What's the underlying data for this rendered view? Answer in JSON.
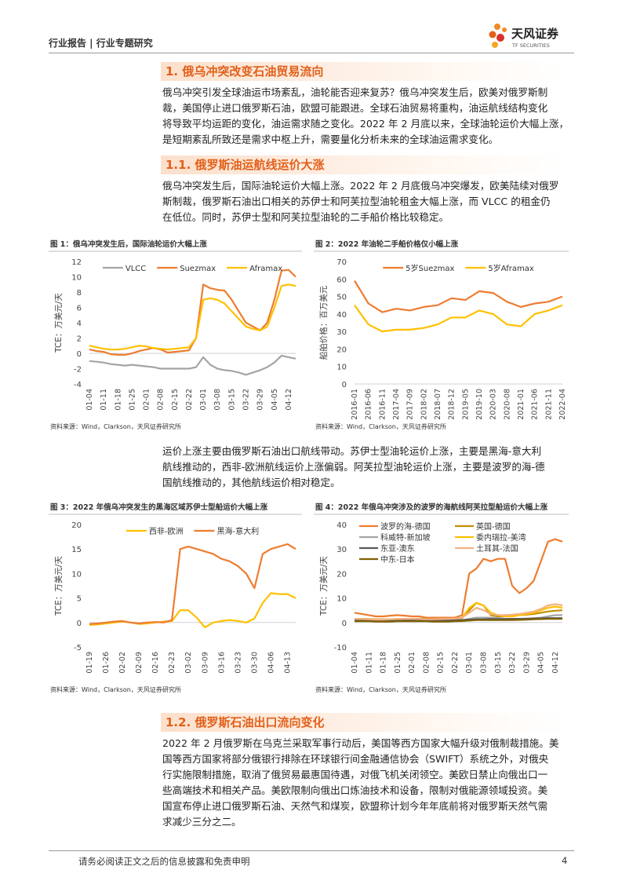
{
  "header": {
    "title": "行业报告 | 行业专题研究",
    "logo_cn": "天风证券",
    "logo_en": "TF SECURITIES"
  },
  "headings": [
    "1. 俄乌冲突改变石油贸易流向",
    "1.1. 俄罗斯油运航线运价大涨",
    "1.2. 俄罗斯石油出口流向变化"
  ],
  "paragraphs": [
    [
      "俄乌冲突引发全球油运市场紊乱，油轮能否迎来复苏？俄乌冲突发生后，欧美对俄罗斯制",
      "裁，美国停止进口俄罗斯石油，欧盟可能跟进。全球石油贸易将重构，油运航线结构变化",
      "将导致平均运距的变化，油运需求随之变化。2022 年 2 月底以来，全球油轮运价大幅上涨，",
      "是短期紊乱所致还是需求中枢上升，需要量化分析未来的全球油运需求变化。"
    ],
    [
      "俄乌冲突发生后，国际油轮运价大幅上涨。2022 年 2 月底俄乌冲突爆发，欧美陆续对俄罗",
      "斯制裁，俄罗斯石油出口相关的苏伊士和阿芙拉型油轮租金大幅上涨，而 VLCC 的租金仍",
      "在低位。同时，苏伊士型和阿芙拉型油轮的二手船价格比较稳定。"
    ],
    [
      "运价上涨主要由俄罗斯石油出口航线带动。苏伊士型油轮运价上涨，主要是黑海-意大利",
      "航线推动的，西非-欧洲航线运价上涨偏弱。阿芙拉型油轮运价上涨，主要是波罗的海-德",
      "国航线推动的，其他航线运价相对稳定。"
    ],
    [
      "2022 年 2 月俄罗斯在乌克兰采取军事行动后，美国等西方国家大幅升级对俄制裁措施。美",
      "国等西方国家将部分俄银行排除在环球银行间金融通信协会（SWIFT）系统之外，对俄央",
      "行实施限制措施，取消了俄贸易最惠国待遇，对俄飞机关闭领空。美欧日禁止向俄出口一",
      "些高端技术和相关产品。美欧限制向俄出口炼油技术和设备，限制对俄能源领域投资。美",
      "国宣布停止进口俄罗斯石油、天然气和煤炭，欧盟称计划今年年底前将对俄罗斯天然气需",
      "求减少三分之二。"
    ]
  ],
  "figures": [
    {
      "caption": "图 1：俄乌冲突发生后，国际油轮运价大幅上涨",
      "source": "资料来源：Wind，Clarkson，天风证券研究所",
      "chart": {
        "type": "line",
        "y_label": "TCE：万美元/天",
        "legend": "top",
        "categories": [
          "01-04",
          null,
          "01-11",
          null,
          "01-18",
          null,
          "01-25",
          null,
          "02-01",
          null,
          "02-08",
          null,
          "02-15",
          null,
          "02-22",
          null,
          "03-01",
          null,
          "03-08",
          null,
          "03-15",
          null,
          "03-22",
          null,
          "03-29",
          null,
          "04-05",
          null,
          "04-12",
          null
        ],
        "ylim": [
          -4,
          12
        ],
        "yticks": [
          -4,
          -2,
          0,
          2,
          4,
          6,
          8,
          10,
          12
        ],
        "series": [
          {
            "name": "VLCC",
            "color": "#a5a5a5",
            "values": [
              -1,
              -1.1,
              -1.2,
              -1.4,
              -1.5,
              -1.6,
              -1.5,
              -1.6,
              -1.7,
              -1.8,
              -2,
              -2,
              -2,
              -2,
              -2,
              -1.8,
              -0.5,
              -1.5,
              -2,
              -2.2,
              -2.3,
              -2.5,
              -2.8,
              -2.5,
              -2.2,
              -1.8,
              -1.2,
              -0.3,
              -0.5,
              -0.7
            ]
          },
          {
            "name": "Suezmax",
            "color": "#ed7d31",
            "values": [
              0.5,
              0.3,
              0.2,
              -0.1,
              -0.2,
              -0.2,
              0,
              0.3,
              0.5,
              0.7,
              0.5,
              0.1,
              0.2,
              0.3,
              0.4,
              2,
              9,
              8.5,
              8.3,
              8.2,
              7,
              5.5,
              4,
              3.5,
              3,
              4,
              7,
              10.8,
              10.9,
              10
            ]
          },
          {
            "name": "Aframax",
            "color": "#ffc000",
            "values": [
              1,
              0.8,
              0.6,
              0.5,
              0.5,
              0.6,
              0.8,
              1,
              0.9,
              0.7,
              0.6,
              0.5,
              0.6,
              0.7,
              0.8,
              2,
              7,
              7.2,
              7,
              6.5,
              5.5,
              4.5,
              3.5,
              3.2,
              3,
              3.5,
              6,
              8.8,
              9,
              8.8
            ]
          }
        ]
      }
    },
    {
      "caption": "图 2：2022 年油轮二手船价格仅小幅上涨",
      "source": "资料来源：Wind，Clarkson，天风证券研究所",
      "chart": {
        "type": "line",
        "y_label": "船舶价格：百万美元",
        "legend": "top",
        "categories": [
          "2016-01",
          "2016-06",
          "2016-11",
          "2017-04",
          "2017-09",
          "2018-02",
          "2018-07",
          "2018-12",
          "2019-05",
          "2019-10",
          "2020-03",
          "2020-08",
          "2021-01",
          "2021-06",
          "2021-11",
          "2022-04"
        ],
        "ylim": [
          0,
          70
        ],
        "yticks": [
          0,
          10,
          20,
          30,
          40,
          50,
          60,
          70
        ],
        "series": [
          {
            "name": "5岁Suezmax",
            "color": "#ed7d31",
            "values": [
              59,
              46,
              41,
              43,
              42,
              44,
              45,
              49,
              48,
              53,
              52,
              47,
              44,
              46,
              47,
              50
            ]
          },
          {
            "name": "5岁Aframax",
            "color": "#ffc000",
            "values": [
              45,
              34,
              30,
              31,
              31,
              32,
              34,
              38,
              38,
              42,
              40,
              34,
              33,
              40,
              42,
              45
            ]
          }
        ]
      }
    },
    {
      "caption": "图 3：2022 年俄乌冲突发生的黑海区域苏伊士型船运价大幅上涨",
      "source": "资料来源：Wind，Clarkson，天风证券研究所",
      "chart": {
        "type": "line",
        "y_label": "TCE：万美元/天",
        "legend": "top",
        "categories": [
          "01-19",
          null,
          "01-26",
          null,
          "02-02",
          null,
          "02-09",
          null,
          "02-16",
          null,
          "02-23",
          null,
          "03-02",
          null,
          "03-09",
          null,
          "03-16",
          null,
          "03-23",
          null,
          "03-30",
          null,
          "04-06",
          null,
          "04-13",
          null
        ],
        "ylim": [
          -5,
          20
        ],
        "yticks": [
          -5,
          0,
          5,
          10,
          15,
          20
        ],
        "series": [
          {
            "name": "西非-欧洲",
            "color": "#ffc000",
            "values": [
              -0.5,
              -0.4,
              -0.2,
              0,
              0.2,
              0,
              -0.3,
              -0.2,
              0,
              0.2,
              0.3,
              2.5,
              2.5,
              1,
              -1,
              0,
              0.3,
              0.5,
              0.3,
              0,
              0.8,
              4,
              6,
              5.8,
              5.8,
              5
            ]
          },
          {
            "name": "黑海-意大利",
            "color": "#ed7d31",
            "values": [
              -0.3,
              -0.2,
              0,
              0.2,
              0.3,
              0,
              -0.2,
              0,
              0.1,
              0,
              0.5,
              15,
              15.5,
              15,
              14.5,
              14,
              13,
              12.5,
              11.5,
              10,
              7,
              14,
              15,
              15.5,
              16,
              15
            ]
          }
        ]
      }
    },
    {
      "caption": "图 4：2022 年俄乌冲突涉及的波罗的海航线阿芙拉型船运价大幅上涨",
      "source": "资料来源：Wind，Clarkson，天风证券研究所",
      "chart": {
        "type": "line",
        "y_label": "TCE：万美元/天",
        "legend": "top-left",
        "categories": [
          "01-04",
          null,
          "01-11",
          null,
          "01-18",
          null,
          "01-25",
          null,
          "02-01",
          null,
          "02-08",
          null,
          "02-15",
          null,
          "02-22",
          null,
          "03-01",
          null,
          "03-08",
          null,
          "03-15",
          null,
          "03-22",
          null,
          "03-29",
          null,
          "04-05",
          null,
          "04-12",
          null
        ],
        "ylim": [
          -10,
          40
        ],
        "yticks": [
          -10,
          0,
          10,
          20,
          30,
          40
        ],
        "series": [
          {
            "name": "波罗的海-德国",
            "color": "#ed7d31",
            "values": [
              4,
              3.5,
              3,
              2.5,
              2.5,
              2.8,
              3,
              2.8,
              2.5,
              2.5,
              2,
              2,
              2,
              2,
              2,
              3,
              20,
              22,
              26,
              25,
              26,
              26,
              15,
              12,
              14,
              17,
              25,
              33,
              34,
              33
            ]
          },
          {
            "name": "英国-德国",
            "color": "#bf9000",
            "values": [
              1.5,
              1.5,
              1.4,
              1.3,
              1.3,
              1.3,
              1.4,
              1.5,
              1.5,
              1.5,
              1.4,
              1.3,
              1.3,
              1.4,
              1.5,
              1.8,
              5,
              8,
              7,
              3,
              2.5,
              2.5,
              2.8,
              3,
              3.2,
              3.5,
              4,
              4.5,
              4.8,
              5
            ]
          },
          {
            "name": "科威特-新加坡",
            "color": "#a5a5a5",
            "values": [
              1,
              1,
              0.9,
              0.8,
              0.8,
              0.8,
              0.9,
              1,
              1,
              1,
              0.9,
              0.8,
              0.8,
              0.8,
              0.8,
              1,
              1.5,
              2,
              2,
              2,
              1.8,
              1.5,
              1.5,
              1.5,
              1.5,
              1.8,
              2,
              2.5,
              3,
              3
            ]
          },
          {
            "name": "委内瑞拉-美湾",
            "color": "#ffc000",
            "values": [
              1.5,
              1.5,
              1.3,
              1.2,
              1.2,
              1.3,
              1.4,
              1.5,
              1.4,
              1.3,
              1.2,
              1.2,
              1.2,
              1.3,
              1.4,
              2,
              6,
              8,
              7,
              4,
              3,
              2.5,
              2.5,
              3,
              3.5,
              4,
              5,
              6,
              6.5,
              6
            ]
          },
          {
            "name": "东亚-澳东",
            "color": "#595959",
            "values": [
              1,
              1,
              1,
              0.9,
              0.9,
              0.9,
              1,
              1,
              1,
              1,
              1,
              0.9,
              0.9,
              0.9,
              1,
              1,
              1.2,
              1.3,
              1.3,
              1.4,
              1.4,
              1.4,
              1.5,
              1.5,
              1.6,
              1.6,
              1.7,
              1.8,
              1.8,
              1.8
            ]
          },
          {
            "name": "土耳其-法国",
            "color": "#f4b183",
            "values": [
              1.5,
              1.4,
              1.3,
              1.2,
              1.2,
              1.3,
              1.4,
              1.5,
              1.5,
              1.4,
              1.3,
              1.3,
              1.4,
              1.5,
              1.6,
              2,
              4,
              6,
              5,
              3.5,
              3,
              3,
              3.2,
              3.5,
              4,
              4.5,
              5.5,
              7,
              7.5,
              7
            ]
          },
          {
            "name": "中东-日本",
            "color": "#7f6000",
            "values": [
              0.5,
              0.5,
              0.5,
              0.4,
              0.4,
              0.4,
              0.5,
              0.5,
              0.5,
              0.5,
              0.5,
              0.4,
              0.4,
              0.4,
              0.5,
              0.6,
              0.8,
              1,
              1,
              1,
              1,
              1,
              1,
              1.1,
              1.2,
              1.3,
              1.4,
              1.5,
              1.5,
              1.5
            ]
          }
        ]
      }
    }
  ],
  "footer": {
    "disclaimer": "请务必阅读正文之后的信息披露和免责申明",
    "page": 4
  }
}
